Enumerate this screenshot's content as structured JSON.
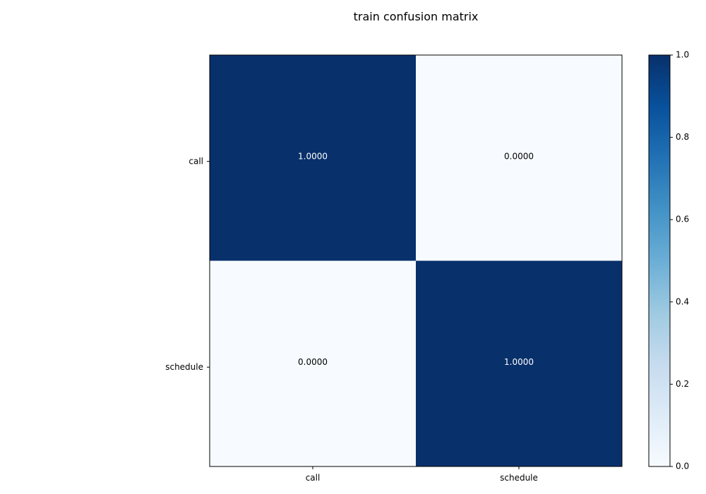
{
  "chart_data": {
    "type": "heatmap",
    "title": "train confusion matrix",
    "xlabel": "",
    "ylabel": "",
    "x_categories": [
      "call",
      "schedule"
    ],
    "y_categories": [
      "call",
      "schedule"
    ],
    "values": [
      [
        1.0,
        0.0
      ],
      [
        0.0,
        1.0
      ]
    ],
    "cell_labels": [
      [
        "1.0000",
        "0.0000"
      ],
      [
        "0.0000",
        "1.0000"
      ]
    ],
    "color_scale": {
      "name": "Blues",
      "min": 0.0,
      "max": 1.0,
      "low_color": "#f7fbff",
      "high_color": "#08306b"
    },
    "colorbar": {
      "ticks": [
        0.0,
        0.2,
        0.4,
        0.6,
        0.8,
        1.0
      ],
      "tick_labels": [
        "0.0",
        "0.2",
        "0.4",
        "0.6",
        "0.8",
        "1.0"
      ],
      "placement": "right"
    },
    "text_colors": {
      "on_dark": "#ffffff",
      "on_light": "#000000"
    },
    "grid": false
  }
}
